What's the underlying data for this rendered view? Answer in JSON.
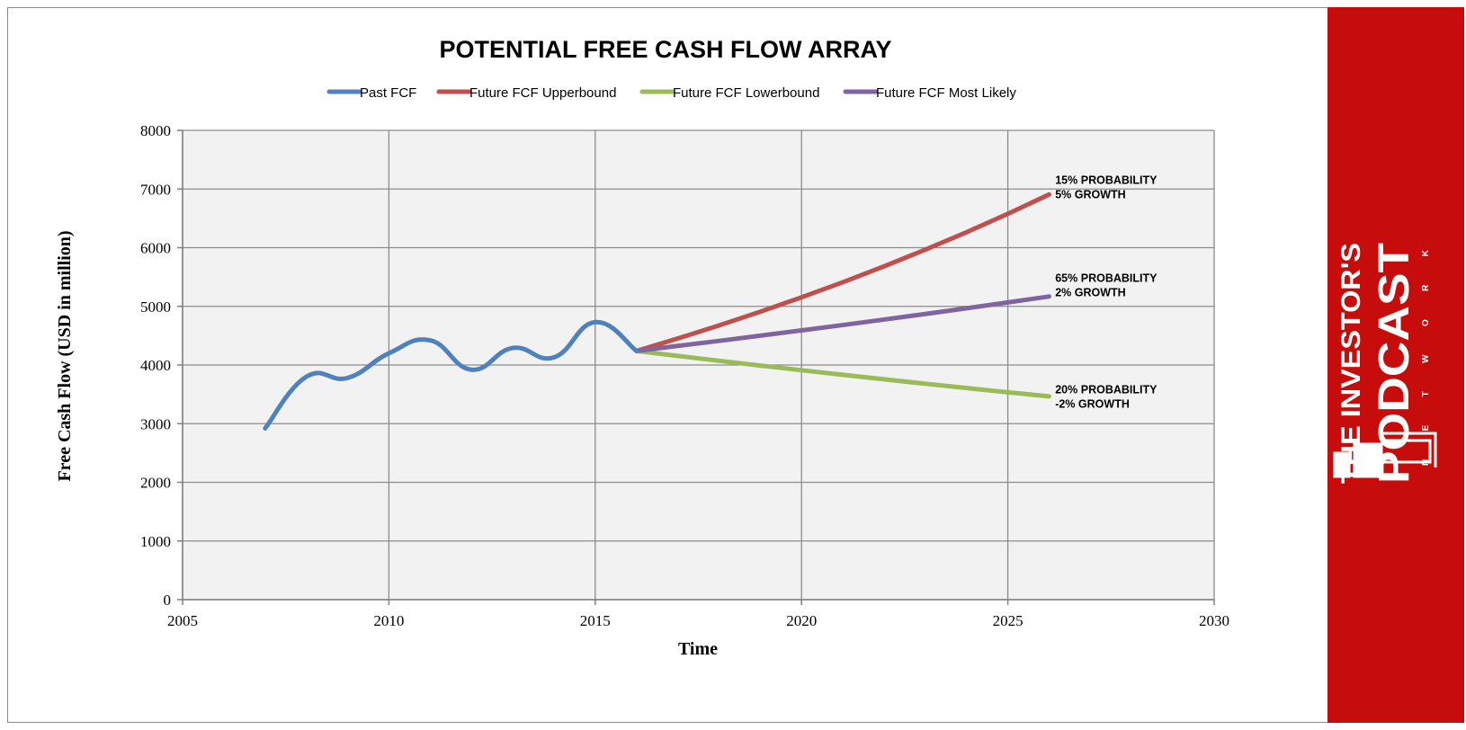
{
  "brand": {
    "line1": "THE INVESTOR'S",
    "line2": "PODCAST",
    "line3": "NETWORK",
    "panel_color": "#c70c0c",
    "text_color": "#ffffff"
  },
  "chart_data": {
    "type": "line",
    "title": "POTENTIAL FREE CASH FLOW ARRAY",
    "xlabel": "Time",
    "ylabel": "Free Cash Flow (USD in million)",
    "xlim": [
      2005,
      2030
    ],
    "ylim": [
      0,
      8000
    ],
    "x_ticks": [
      2005,
      2010,
      2015,
      2020,
      2025,
      2030
    ],
    "y_ticks": [
      0,
      1000,
      2000,
      3000,
      4000,
      5000,
      6000,
      7000,
      8000
    ],
    "grid": true,
    "plot_background": "#f2f2f2",
    "legend_position": "top",
    "series": [
      {
        "name": "Past FCF",
        "color": "#4f81bd",
        "smooth": true,
        "x": [
          2007,
          2008,
          2009,
          2010,
          2011,
          2012,
          2013,
          2014,
          2015,
          2016
        ],
        "y": [
          2920,
          3800,
          3780,
          4200,
          4420,
          3920,
          4290,
          4130,
          4730,
          4240
        ]
      },
      {
        "name": "Future FCF Upperbound",
        "color": "#c0504d",
        "smooth": false,
        "x": [
          2016,
          2017,
          2018,
          2019,
          2020,
          2021,
          2022,
          2023,
          2024,
          2025,
          2026
        ],
        "y": [
          4240,
          4452,
          4675,
          4908,
          5154,
          5411,
          5682,
          5966,
          6264,
          6578,
          6907
        ]
      },
      {
        "name": "Future FCF Lowerbound",
        "color": "#9bbb59",
        "smooth": false,
        "x": [
          2016,
          2017,
          2018,
          2019,
          2020,
          2021,
          2022,
          2023,
          2024,
          2025,
          2026
        ],
        "y": [
          4240,
          4155,
          4072,
          3991,
          3911,
          3833,
          3756,
          3681,
          3607,
          3535,
          3465
        ]
      },
      {
        "name": "Future FCF Most Likely",
        "color": "#8064a2",
        "smooth": false,
        "x": [
          2016,
          2017,
          2018,
          2019,
          2020,
          2021,
          2022,
          2023,
          2024,
          2025,
          2026
        ],
        "y": [
          4240,
          4325,
          4411,
          4500,
          4590,
          4681,
          4775,
          4870,
          4968,
          5067,
          5168
        ]
      }
    ],
    "annotations": [
      {
        "lines": [
          "15% PROBABILITY",
          "5% GROWTH"
        ],
        "x": 2026.3,
        "y": 6905
      },
      {
        "lines": [
          "65% PROBABILITY",
          "2% GROWTH"
        ],
        "x": 2026.3,
        "y": 5230
      },
      {
        "lines": [
          "20% PROBABILITY",
          "-2% GROWTH"
        ],
        "x": 2026.3,
        "y": 3330
      }
    ]
  }
}
